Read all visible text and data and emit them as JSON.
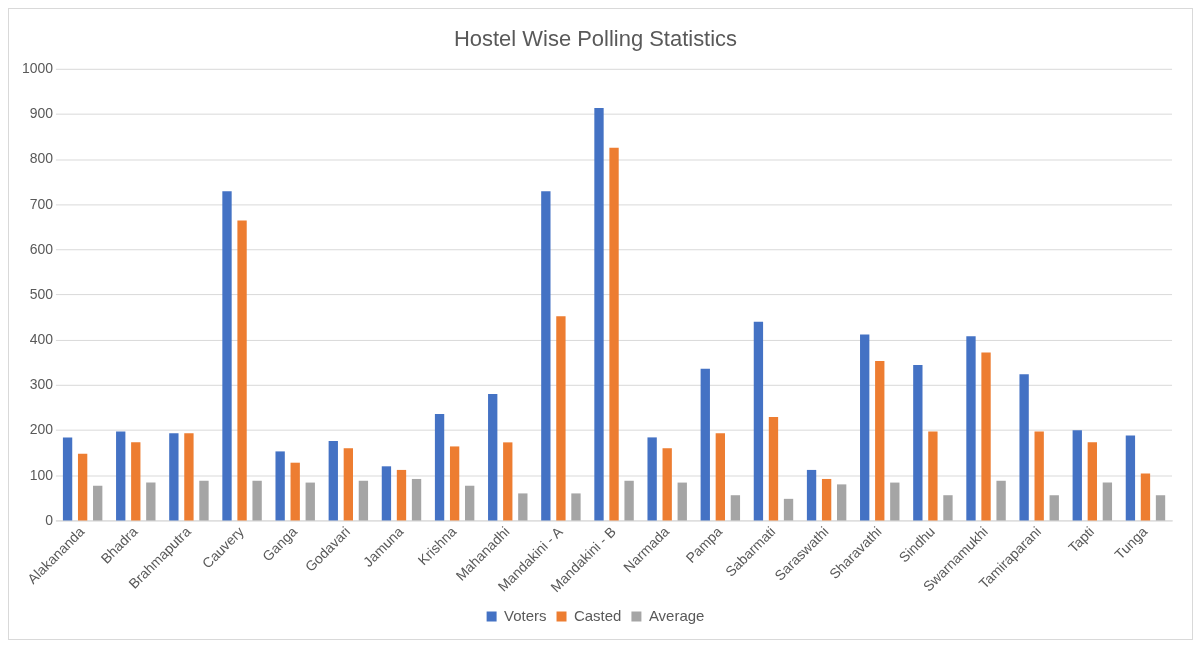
{
  "chart_data": {
    "type": "bar",
    "title": "Hostel Wise Polling Statistics",
    "categories": [
      "Alakananda",
      "Bhadra",
      "Brahmaputra",
      "Cauvery",
      "Ganga",
      "Godavari",
      "Jamuna",
      "Krishna",
      "Mahanadhi",
      "Mandakini - A",
      "Mandakini - B",
      "Narmada",
      "Pampa",
      "Sabarmati",
      "Saraswathi",
      "Sharavathi",
      "Sindhu",
      "Swarnamukhi",
      "Tamiraparani",
      "Tapti",
      "Tunga"
    ],
    "series": [
      {
        "name": "Voters",
        "color": "#4472c4",
        "values": [
          185,
          198,
          194,
          730,
          154,
          177,
          121,
          237,
          281,
          730,
          914,
          185,
          337,
          441,
          113,
          413,
          345,
          409,
          325,
          201,
          189
        ]
      },
      {
        "name": "Casted",
        "color": "#ed7d31",
        "values": [
          149,
          174,
          194,
          665,
          129,
          161,
          113,
          165,
          174,
          453,
          826,
          161,
          194,
          230,
          93,
          354,
          198,
          373,
          198,
          174,
          105
        ]
      },
      {
        "name": "Average",
        "color": "#a5a5a5",
        "values": [
          78,
          85,
          89,
          89,
          85,
          89,
          93,
          78,
          61,
          61,
          89,
          85,
          57,
          49,
          81,
          85,
          57,
          89,
          57,
          85,
          57
        ]
      }
    ],
    "ylim": [
      0,
      1000
    ],
    "yticks": [
      0,
      100,
      200,
      300,
      400,
      500,
      600,
      700,
      800,
      900,
      1000
    ],
    "grid": "y",
    "legend": "bottom"
  }
}
